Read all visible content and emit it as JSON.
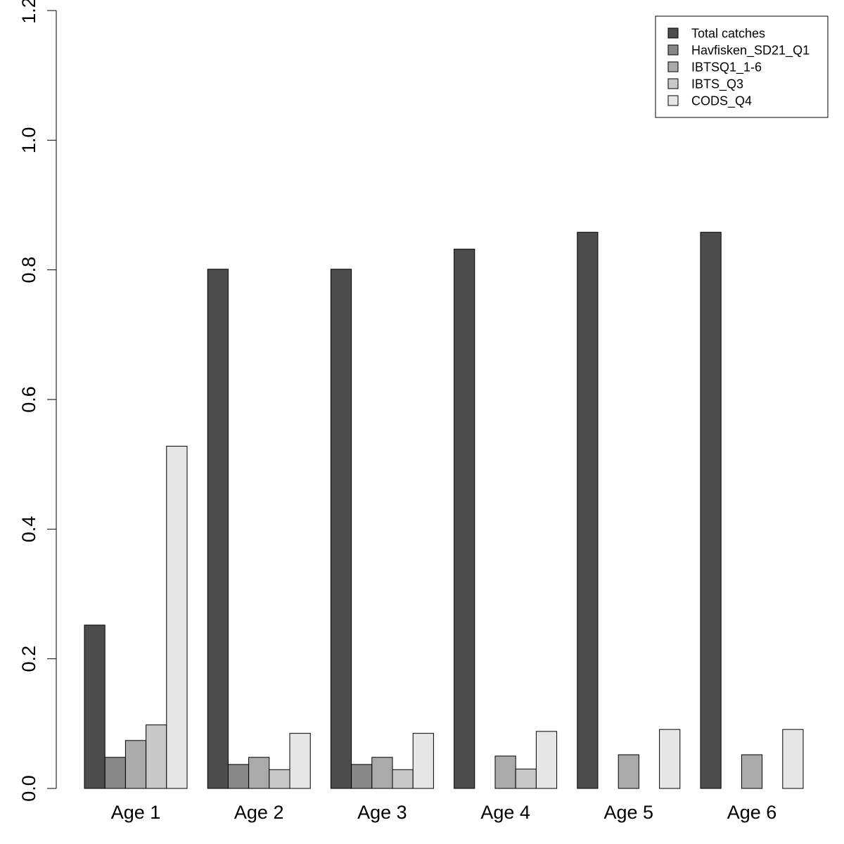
{
  "chart_data": {
    "type": "bar",
    "title": "",
    "xlabel": "",
    "ylabel": "",
    "ylim": [
      0,
      1.2
    ],
    "yticks": [
      0.0,
      0.2,
      0.4,
      0.6,
      0.8,
      1.0,
      1.2
    ],
    "ytick_labels": [
      "0.0",
      "0.2",
      "0.4",
      "0.6",
      "0.8",
      "1.0",
      "1.2"
    ],
    "categories": [
      "Age 1",
      "Age 2",
      "Age 3",
      "Age 4",
      "Age 5",
      "Age 6"
    ],
    "grid": false,
    "legend_position": "top-right",
    "series": [
      {
        "name": "Total catches",
        "color": "#4d4d4d",
        "values": [
          0.252,
          0.801,
          0.801,
          0.832,
          0.858,
          0.858
        ]
      },
      {
        "name": "Havfisken_SD21_Q1",
        "color": "#878787",
        "values": [
          0.048,
          0.037,
          0.037,
          0,
          0,
          0
        ]
      },
      {
        "name": "IBTSQ1_1-6",
        "color": "#aaaaaa",
        "values": [
          0.074,
          0.048,
          0.048,
          0.05,
          0.052,
          0.052
        ]
      },
      {
        "name": "IBTS_Q3",
        "color": "#c8c8c8",
        "values": [
          0.098,
          0.029,
          0.029,
          0.03,
          0,
          0
        ]
      },
      {
        "name": "CODS_Q4",
        "color": "#e6e6e6",
        "values": [
          0.528,
          0.085,
          0.085,
          0.088,
          0.091,
          0.091
        ]
      }
    ]
  }
}
